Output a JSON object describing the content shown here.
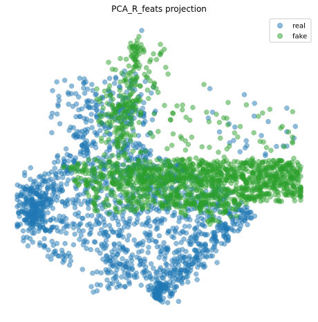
{
  "chart_data": {
    "type": "scatter",
    "title": "PCA_R_feats projection",
    "xlabel": "",
    "ylabel": "",
    "axes_visible": false,
    "grid": false,
    "legend_placement": "top-right",
    "series": [
      {
        "name": "real",
        "color": "#1f77b4",
        "alpha": 0.5
      },
      {
        "name": "fake",
        "color": "#2ca02c",
        "alpha": 0.5
      }
    ]
  }
}
